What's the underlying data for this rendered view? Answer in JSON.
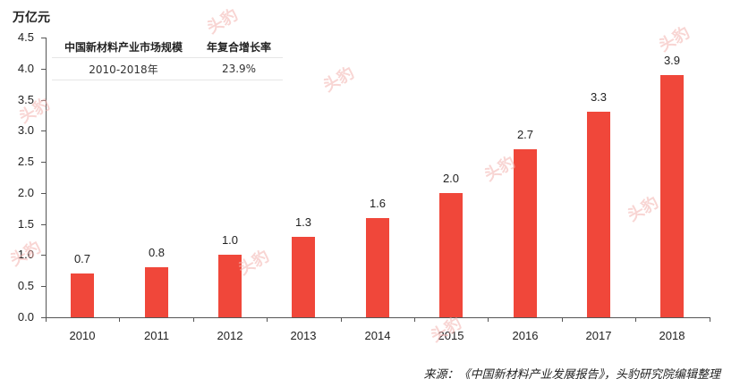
{
  "chart_data": {
    "type": "bar",
    "title": "",
    "xlabel": "",
    "ylabel": "万亿元",
    "ylim": [
      0,
      4.5
    ],
    "yticks": [
      "0.0",
      "0.5",
      "1.0",
      "1.5",
      "2.0",
      "2.5",
      "3.0",
      "3.5",
      "4.0",
      "4.5"
    ],
    "categories": [
      "2010",
      "2011",
      "2012",
      "2013",
      "2014",
      "2015",
      "2016",
      "2017",
      "2018"
    ],
    "values": [
      0.7,
      0.8,
      1.0,
      1.3,
      1.6,
      2.0,
      2.7,
      3.3,
      3.9
    ],
    "value_labels": [
      "0.7",
      "0.8",
      "1.0",
      "1.3",
      "1.6",
      "2.0",
      "2.7",
      "3.3",
      "3.9"
    ],
    "bar_color": "#f0473a",
    "grid": false,
    "legend": null,
    "annotation_table": {
      "headers": [
        "中国新材料产业市场规模",
        "年复合增长率"
      ],
      "rows": [
        [
          "2010-2018年",
          "23.9%"
        ]
      ]
    }
  },
  "unit_label": "万亿元",
  "table": {
    "header_1": "中国新材料产业市场规模",
    "header_2": "年复合增长率",
    "cell_1": "2010-2018年",
    "cell_2": "23.9%"
  },
  "source": "来源：《中国新材料产业发展报告》，头豹研究院编辑整理",
  "watermark": "头豹"
}
